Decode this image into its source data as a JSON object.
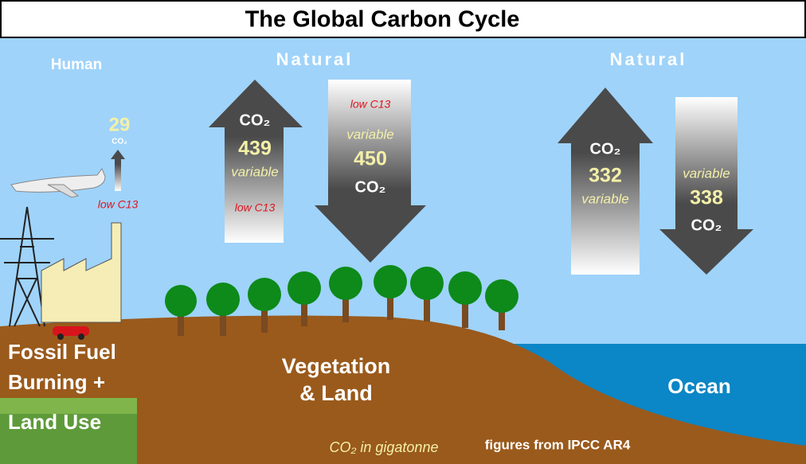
{
  "title": "The Global Carbon Cycle",
  "sections": {
    "human": "Human",
    "natural_land": "Natural",
    "natural_ocean": "Natural"
  },
  "flows": {
    "fossil_emission": {
      "gas": "CO₂",
      "amount": 29,
      "note": "low C13"
    },
    "land_emission": {
      "gas": "CO₂",
      "amount": 439,
      "variability": "variable",
      "note": "low C13"
    },
    "land_uptake": {
      "note": "low C13",
      "variability": "variable",
      "amount": 450,
      "gas": "CO₂"
    },
    "ocean_emission": {
      "gas": "CO₂",
      "amount": 332,
      "variability": "variable"
    },
    "ocean_uptake": {
      "variability": "variable",
      "amount": 338,
      "gas": "CO₂"
    }
  },
  "regions": {
    "fossil": [
      "Fossil Fuel",
      "Burning +",
      "Land Use"
    ],
    "land": [
      "Vegetation",
      "& Land"
    ],
    "ocean": "Ocean"
  },
  "footer": {
    "units": "CO₂ in gigatonne",
    "source": "figures from IPCC AR4"
  }
}
